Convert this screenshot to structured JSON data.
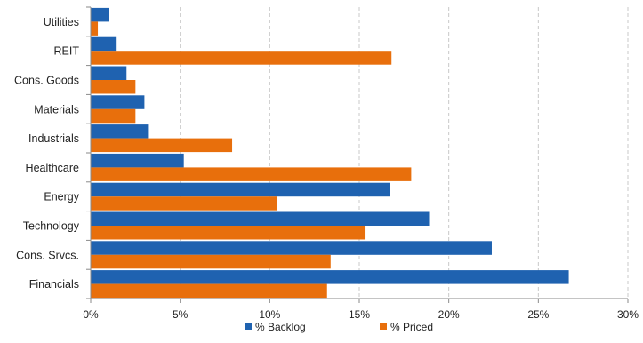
{
  "chart_data": {
    "type": "bar",
    "orientation": "horizontal",
    "title": "",
    "xlabel": "",
    "ylabel": "",
    "categories": [
      "Utilities",
      "REIT",
      "Cons. Goods",
      "Materials",
      "Industrials",
      "Healthcare",
      "Energy",
      "Technology",
      "Cons. Srvcs.",
      "Financials"
    ],
    "series": [
      {
        "name": "% Backlog",
        "color": "#1f62b0",
        "values": [
          1.0,
          1.4,
          2.0,
          3.0,
          3.2,
          5.2,
          16.7,
          18.9,
          22.4,
          26.7
        ]
      },
      {
        "name": "% Priced",
        "color": "#e86f0c",
        "values": [
          0.4,
          16.8,
          2.5,
          2.5,
          7.9,
          17.9,
          10.4,
          15.3,
          13.4,
          13.2
        ]
      }
    ],
    "xlim": [
      0,
      30
    ],
    "xticks": [
      0,
      5,
      10,
      15,
      20,
      25,
      30
    ],
    "tick_format": "{v}%",
    "grid": true,
    "legend_position": "bottom"
  }
}
